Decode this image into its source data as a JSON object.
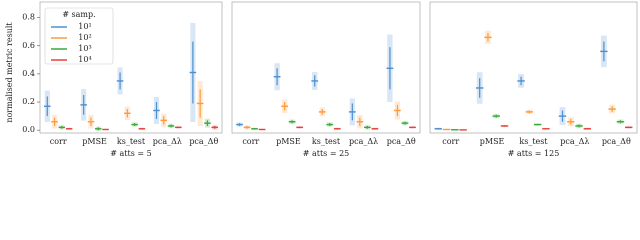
{
  "chart_data": [
    {
      "type": "errorbar",
      "y_label": "normalised metric result",
      "x_label": "# atts = 5",
      "categories": [
        "corr",
        "pMSE",
        "ks_test",
        "pca_Δλ",
        "pca_Δθ"
      ],
      "legend_title": "# samp.",
      "series": [
        {
          "name": "10¹",
          "color": "#4c8fd0",
          "values": [
            0.17,
            0.18,
            0.35,
            0.14,
            0.41
          ],
          "errors": [
            0.07,
            0.07,
            0.06,
            0.06,
            0.22
          ]
        },
        {
          "name": "10²",
          "color": "#ff9a3c",
          "values": [
            0.06,
            0.06,
            0.12,
            0.07,
            0.19
          ],
          "errors": [
            0.03,
            0.03,
            0.03,
            0.03,
            0.1
          ]
        },
        {
          "name": "10³",
          "color": "#3ba83b",
          "values": [
            0.02,
            0.01,
            0.04,
            0.03,
            0.05
          ],
          "errors": [
            0.01,
            0.01,
            0.01,
            0.01,
            0.02
          ]
        },
        {
          "name": "10⁴",
          "color": "#e5413b",
          "values": [
            0.01,
            0.005,
            0.01,
            0.02,
            0.02
          ],
          "errors": [
            0.005,
            0.003,
            0.005,
            0.005,
            0.01
          ]
        }
      ],
      "ylim": [
        -0.02,
        0.84
      ],
      "yticks": [
        {
          "value": 0,
          "label": "0.0"
        },
        {
          "value": 0.2,
          "label": "0.2"
        },
        {
          "value": 0.4,
          "label": "0.4"
        },
        {
          "value": 0.6,
          "label": "0.6"
        },
        {
          "value": 0.8,
          "label": "0.8"
        }
      ]
    },
    {
      "type": "errorbar",
      "x_label": "# atts = 25",
      "categories": [
        "corr",
        "pMSE",
        "ks_test",
        "pca_Δλ",
        "pca_Δθ"
      ],
      "series": [
        {
          "color": "#4c8fd0",
          "values": [
            0.04,
            0.38,
            0.35,
            0.13,
            0.44
          ],
          "errors": [
            0.01,
            0.06,
            0.04,
            0.06,
            0.15
          ]
        },
        {
          "color": "#ff9a3c",
          "values": [
            0.02,
            0.17,
            0.13,
            0.06,
            0.14
          ],
          "errors": [
            0.01,
            0.03,
            0.02,
            0.03,
            0.04
          ]
        },
        {
          "color": "#3ba83b",
          "values": [
            0.01,
            0.06,
            0.04,
            0.02,
            0.05
          ],
          "errors": [
            0.005,
            0.01,
            0.01,
            0.01,
            0.01
          ]
        },
        {
          "color": "#e5413b",
          "values": [
            0.005,
            0.02,
            0.01,
            0.01,
            0.02
          ],
          "errors": [
            0.003,
            0.005,
            0.005,
            0.005,
            0.005
          ]
        }
      ],
      "ylim": [
        -0.02,
        0.84
      ]
    },
    {
      "type": "errorbar",
      "x_label": "# atts = 125",
      "categories": [
        "corr",
        "pMSE",
        "ks_test",
        "pca_Δλ",
        "pca_Δθ"
      ],
      "series": [
        {
          "color": "#4c8fd0",
          "values": [
            0.01,
            0.3,
            0.35,
            0.1,
            0.56
          ],
          "errors": [
            0.005,
            0.07,
            0.03,
            0.04,
            0.07
          ]
        },
        {
          "color": "#ff9a3c",
          "values": [
            0.005,
            0.66,
            0.13,
            0.06,
            0.15
          ],
          "errors": [
            0.003,
            0.03,
            0.01,
            0.02,
            0.02
          ]
        },
        {
          "color": "#3ba83b",
          "values": [
            0.003,
            0.1,
            0.04,
            0.03,
            0.06
          ],
          "errors": [
            0.002,
            0.01,
            0.005,
            0.01,
            0.01
          ]
        },
        {
          "color": "#e5413b",
          "values": [
            0.002,
            0.03,
            0.01,
            0.01,
            0.02
          ],
          "errors": [
            0.001,
            0.005,
            0.003,
            0.005,
            0.005
          ]
        }
      ],
      "ylim": [
        -0.02,
        0.84
      ]
    }
  ]
}
